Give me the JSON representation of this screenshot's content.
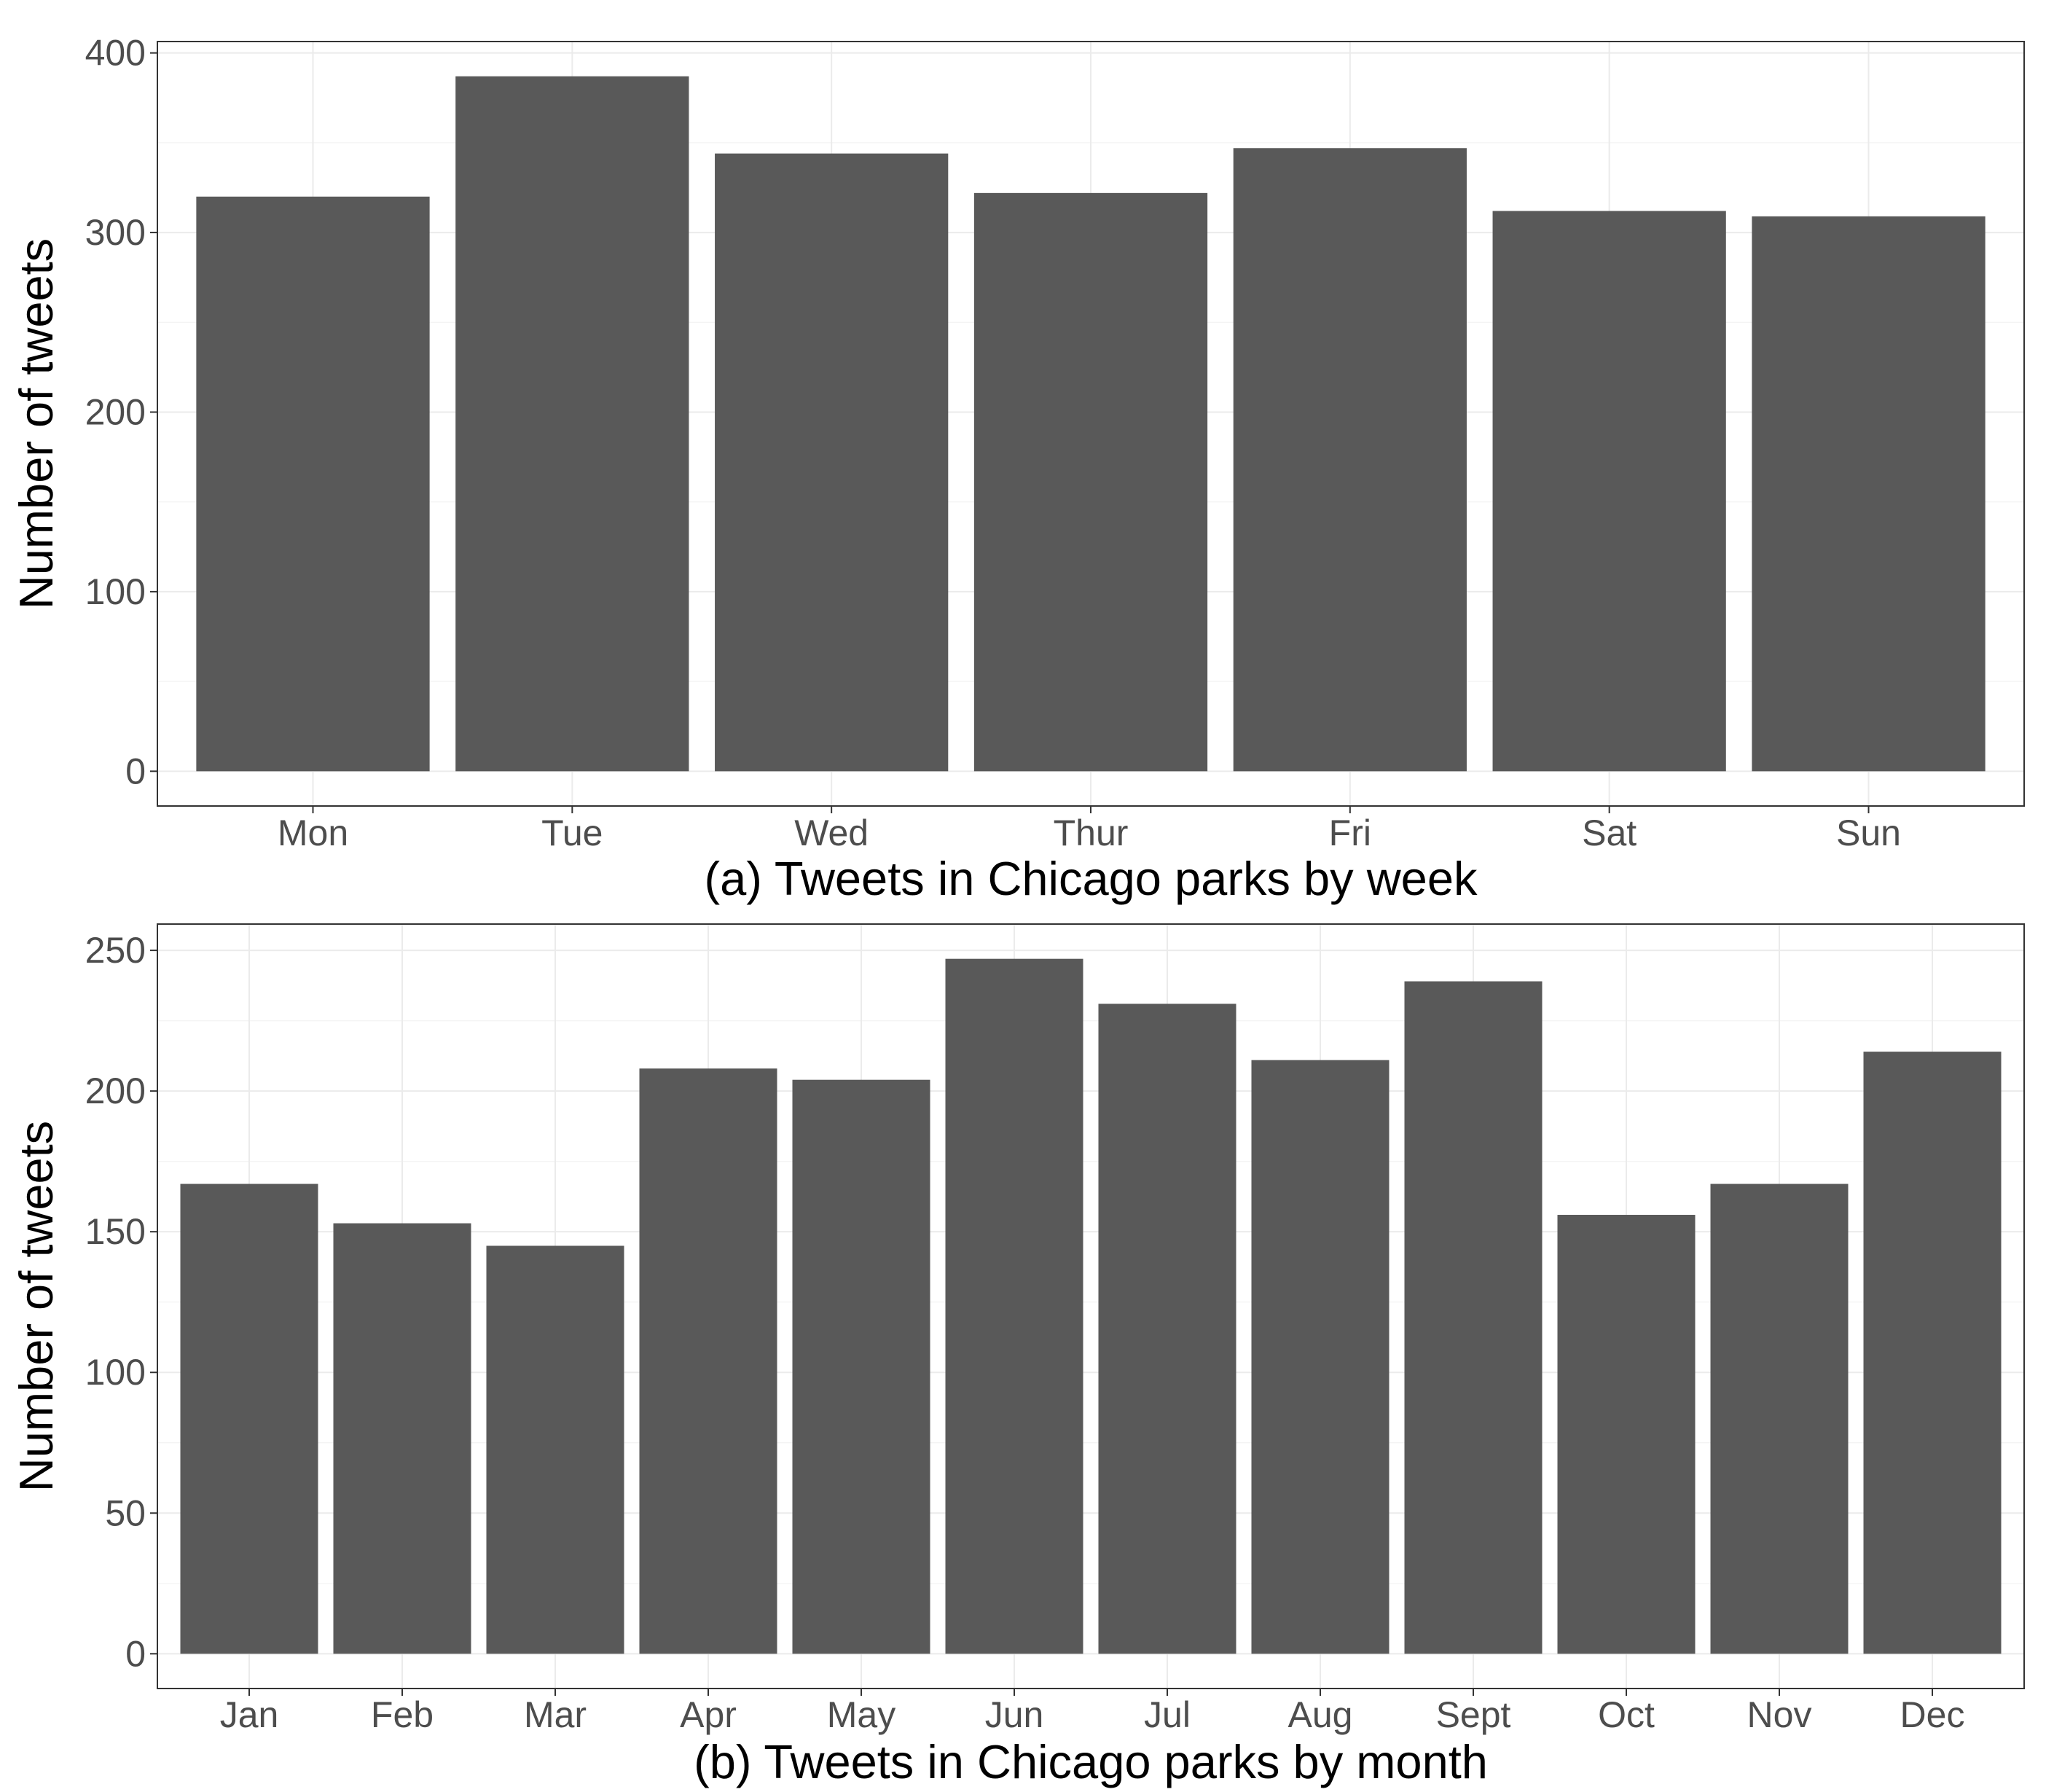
{
  "chart_data": [
    {
      "type": "bar",
      "title": "(a) Tweets in Chicago parks by week",
      "xlabel": "(a) Tweets in Chicago parks by week",
      "ylabel": "Number of tweets",
      "categories": [
        "Mon",
        "Tue",
        "Wed",
        "Thur",
        "Fri",
        "Sat",
        "Sun"
      ],
      "values": [
        320,
        387,
        344,
        322,
        347,
        312,
        309
      ],
      "ylim": [
        0,
        400
      ],
      "yticks": [
        0,
        100,
        200,
        300,
        400
      ],
      "grid": true,
      "bar_color": "#595959"
    },
    {
      "type": "bar",
      "title": "(b) Tweets in Chicago parks by month",
      "xlabel": "(b) Tweets in Chicago parks by month",
      "ylabel": "Number of tweets",
      "categories": [
        "Jan",
        "Feb",
        "Mar",
        "Apr",
        "May",
        "Jun",
        "Jul",
        "Aug",
        "Sept",
        "Oct",
        "Nov",
        "Dec"
      ],
      "values": [
        167,
        153,
        145,
        208,
        204,
        247,
        231,
        211,
        239,
        156,
        167,
        214
      ],
      "ylim": [
        0,
        250
      ],
      "yticks": [
        0,
        50,
        100,
        150,
        200,
        250
      ],
      "grid": true,
      "bar_color": "#595959"
    }
  ]
}
